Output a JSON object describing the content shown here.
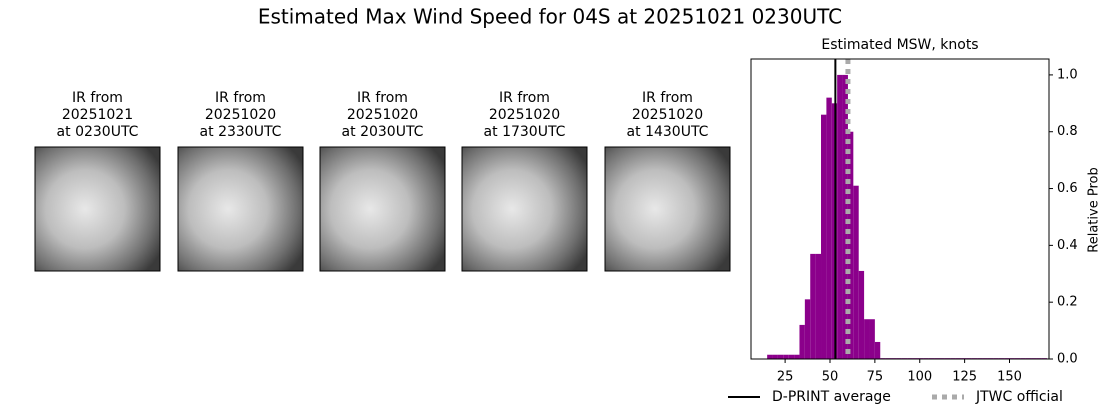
{
  "chart_data": {
    "type": "histogram",
    "suptitle": "Estimated Max Wind Speed for 04S at 20251021 0230UTC",
    "title": "Estimated MSW, knots",
    "ylabel": "Relative Prob",
    "color": "#8b008b",
    "panels": [
      {
        "title": [
          "IR from",
          "20251021",
          "at 0230UTC"
        ]
      },
      {
        "title": [
          "IR from",
          "20251020",
          "at 2330UTC"
        ]
      },
      {
        "title": [
          "IR from",
          "20251020",
          "at 2030UTC"
        ]
      },
      {
        "title": [
          "IR from",
          "20251020",
          "at 1730UTC"
        ]
      },
      {
        "title": [
          "IR from",
          "20251020",
          "at 1430UTC"
        ]
      }
    ],
    "bins": [
      15,
      18,
      21,
      24,
      27,
      30,
      33,
      36,
      39,
      42,
      45,
      48,
      51,
      54,
      57,
      60,
      63,
      66,
      69,
      72,
      75,
      78,
      81,
      84,
      87,
      90,
      93,
      96,
      99,
      102,
      105,
      108,
      111,
      114,
      117,
      120,
      123,
      126,
      129,
      132,
      135,
      138,
      141,
      144,
      147,
      150,
      153,
      156,
      159,
      162,
      165,
      168,
      171
    ],
    "values": [
      0.015,
      0.015,
      0.015,
      0.015,
      0.015,
      0.015,
      0.12,
      0.21,
      0.37,
      0.37,
      0.86,
      0.92,
      0.9,
      1.0,
      1.0,
      0.8,
      0.61,
      0.31,
      0.14,
      0.14,
      0.06,
      0.003,
      0.003,
      0.003,
      0.003,
      0.003,
      0.003,
      0.003,
      0.003,
      0.003,
      0.003,
      0.003,
      0.003,
      0.003,
      0.003,
      0.003,
      0.003,
      0.003,
      0.003,
      0.003,
      0.003,
      0.003,
      0.003,
      0.003,
      0.003,
      0.003,
      0.003,
      0.003,
      0.003,
      0.003,
      0.003,
      0.003
    ],
    "lines": [
      {
        "name": "D-PRINT average",
        "color": "#000000",
        "x": 53,
        "style": "solid"
      },
      {
        "name": "JTWC official",
        "color": "#aaaaaa",
        "x": 60,
        "style": "dotted"
      }
    ],
    "xlim": [
      6,
      172
    ],
    "ylim": [
      0,
      1.056
    ],
    "xticks": [
      25,
      50,
      75,
      100,
      125,
      150
    ],
    "yticks": [
      {
        "value": 0,
        "label": "0.0"
      },
      {
        "value": 0.2,
        "label": "0.2"
      },
      {
        "value": 0.4,
        "label": "0.4"
      },
      {
        "value": 0.6,
        "label": "0.6"
      },
      {
        "value": 0.8,
        "label": "0.8"
      },
      {
        "value": 1.0,
        "label": "1.0"
      }
    ]
  }
}
